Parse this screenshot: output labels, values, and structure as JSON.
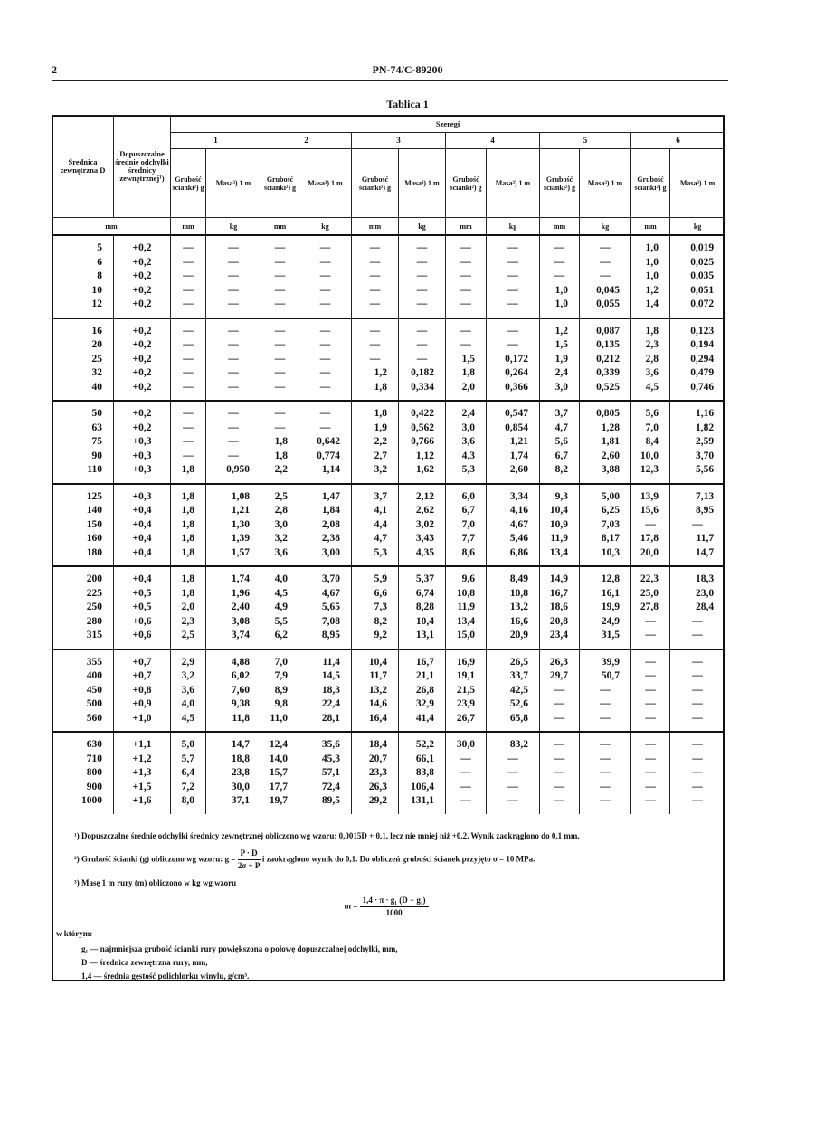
{
  "header": {
    "page_number": "2",
    "standard": "PN-74/C-89200"
  },
  "table": {
    "title": "Tablica 1",
    "col_diameter": "Średnica zewnętrzna D",
    "col_tolerance": "Dopuszczalne średnie odchyłki średnicy zewnętrznej¹)",
    "series_label": "Szeregi",
    "series": [
      "1",
      "2",
      "3",
      "4",
      "5",
      "6"
    ],
    "thickness_label": "Grubość ścianki²) g",
    "mass_label": "Masa³) 1 m",
    "unit_first": "mm",
    "unit_mm": "mm",
    "unit_kg": "kg",
    "groups": [
      [
        [
          "5",
          "+0,2",
          "—",
          "—",
          "—",
          "—",
          "—",
          "—",
          "—",
          "—",
          "—",
          "—",
          "1,0",
          "0,019"
        ],
        [
          "6",
          "+0,2",
          "—",
          "—",
          "—",
          "—",
          "—",
          "—",
          "—",
          "—",
          "—",
          "—",
          "1,0",
          "0,025"
        ],
        [
          "8",
          "+0,2",
          "—",
          "—",
          "—",
          "—",
          "—",
          "—",
          "—",
          "—",
          "—",
          "—",
          "1,0",
          "0,035"
        ],
        [
          "10",
          "+0,2",
          "—",
          "—",
          "—",
          "—",
          "—",
          "—",
          "—",
          "—",
          "1,0",
          "0,045",
          "1,2",
          "0,051"
        ],
        [
          "12",
          "+0,2",
          "—",
          "—",
          "—",
          "—",
          "—",
          "—",
          "—",
          "—",
          "1,0",
          "0,055",
          "1,4",
          "0,072"
        ]
      ],
      [
        [
          "16",
          "+0,2",
          "—",
          "—",
          "—",
          "—",
          "—",
          "—",
          "—",
          "—",
          "1,2",
          "0,087",
          "1,8",
          "0,123"
        ],
        [
          "20",
          "+0,2",
          "—",
          "—",
          "—",
          "—",
          "—",
          "—",
          "—",
          "—",
          "1,5",
          "0,135",
          "2,3",
          "0,194"
        ],
        [
          "25",
          "+0,2",
          "—",
          "—",
          "—",
          "—",
          "—",
          "—",
          "1,5",
          "0,172",
          "1,9",
          "0,212",
          "2,8",
          "0,294"
        ],
        [
          "32",
          "+0,2",
          "—",
          "—",
          "—",
          "—",
          "1,2",
          "0,182",
          "1,8",
          "0,264",
          "2,4",
          "0,339",
          "3,6",
          "0,479"
        ],
        [
          "40",
          "+0,2",
          "—",
          "—",
          "—",
          "—",
          "1,8",
          "0,334",
          "2,0",
          "0,366",
          "3,0",
          "0,525",
          "4,5",
          "0,746"
        ]
      ],
      [
        [
          "50",
          "+0,2",
          "—",
          "—",
          "—",
          "—",
          "1,8",
          "0,422",
          "2,4",
          "0,547",
          "3,7",
          "0,805",
          "5,6",
          "1,16"
        ],
        [
          "63",
          "+0,2",
          "—",
          "—",
          "—",
          "—",
          "1,9",
          "0,562",
          "3,0",
          "0,854",
          "4,7",
          "1,28",
          "7,0",
          "1,82"
        ],
        [
          "75",
          "+0,3",
          "—",
          "—",
          "1,8",
          "0,642",
          "2,2",
          "0,766",
          "3,6",
          "1,21",
          "5,6",
          "1,81",
          "8,4",
          "2,59"
        ],
        [
          "90",
          "+0,3",
          "—",
          "—",
          "1,8",
          "0,774",
          "2,7",
          "1,12",
          "4,3",
          "1,74",
          "6,7",
          "2,60",
          "10,0",
          "3,70"
        ],
        [
          "110",
          "+0,3",
          "1,8",
          "0,950",
          "2,2",
          "1,14",
          "3,2",
          "1,62",
          "5,3",
          "2,60",
          "8,2",
          "3,88",
          "12,3",
          "5,56"
        ]
      ],
      [
        [
          "125",
          "+0,3",
          "1,8",
          "1,08",
          "2,5",
          "1,47",
          "3,7",
          "2,12",
          "6,0",
          "3,34",
          "9,3",
          "5,00",
          "13,9",
          "7,13"
        ],
        [
          "140",
          "+0,4",
          "1,8",
          "1,21",
          "2,8",
          "1,84",
          "4,1",
          "2,62",
          "6,7",
          "4,16",
          "10,4",
          "6,25",
          "15,6",
          "8,95"
        ],
        [
          "150",
          "+0,4",
          "1,8",
          "1,30",
          "3,0",
          "2,08",
          "4,4",
          "3,02",
          "7,0",
          "4,67",
          "10,9",
          "7,03",
          "—",
          "—"
        ],
        [
          "160",
          "+0,4",
          "1,8",
          "1,39",
          "3,2",
          "2,38",
          "4,7",
          "3,43",
          "7,7",
          "5,46",
          "11,9",
          "8,17",
          "17,8",
          "11,7"
        ],
        [
          "180",
          "+0,4",
          "1,8",
          "1,57",
          "3,6",
          "3,00",
          "5,3",
          "4,35",
          "8,6",
          "6,86",
          "13,4",
          "10,3",
          "20,0",
          "14,7"
        ]
      ],
      [
        [
          "200",
          "+0,4",
          "1,8",
          "1,74",
          "4,0",
          "3,70",
          "5,9",
          "5,37",
          "9,6",
          "8,49",
          "14,9",
          "12,8",
          "22,3",
          "18,3"
        ],
        [
          "225",
          "+0,5",
          "1,8",
          "1,96",
          "4,5",
          "4,67",
          "6,6",
          "6,74",
          "10,8",
          "10,8",
          "16,7",
          "16,1",
          "25,0",
          "23,0"
        ],
        [
          "250",
          "+0,5",
          "2,0",
          "2,40",
          "4,9",
          "5,65",
          "7,3",
          "8,28",
          "11,9",
          "13,2",
          "18,6",
          "19,9",
          "27,8",
          "28,4"
        ],
        [
          "280",
          "+0,6",
          "2,3",
          "3,08",
          "5,5",
          "7,08",
          "8,2",
          "10,4",
          "13,4",
          "16,6",
          "20,8",
          "24,9",
          "—",
          "—"
        ],
        [
          "315",
          "+0,6",
          "2,5",
          "3,74",
          "6,2",
          "8,95",
          "9,2",
          "13,1",
          "15,0",
          "20,9",
          "23,4",
          "31,5",
          "—",
          "—"
        ]
      ],
      [
        [
          "355",
          "+0,7",
          "2,9",
          "4,88",
          "7,0",
          "11,4",
          "10,4",
          "16,7",
          "16,9",
          "26,5",
          "26,3",
          "39,9",
          "—",
          "—"
        ],
        [
          "400",
          "+0,7",
          "3,2",
          "6,02",
          "7,9",
          "14,5",
          "11,7",
          "21,1",
          "19,1",
          "33,7",
          "29,7",
          "50,7",
          "—",
          "—"
        ],
        [
          "450",
          "+0,8",
          "3,6",
          "7,60",
          "8,9",
          "18,3",
          "13,2",
          "26,8",
          "21,5",
          "42,5",
          "—",
          "—",
          "—",
          "—"
        ],
        [
          "500",
          "+0,9",
          "4,0",
          "9,38",
          "9,8",
          "22,4",
          "14,6",
          "32,9",
          "23,9",
          "52,6",
          "—",
          "—",
          "—",
          "—"
        ],
        [
          "560",
          "+1,0",
          "4,5",
          "11,8",
          "11,0",
          "28,1",
          "16,4",
          "41,4",
          "26,7",
          "65,8",
          "—",
          "—",
          "—",
          "—"
        ]
      ],
      [
        [
          "630",
          "+1,1",
          "5,0",
          "14,7",
          "12,4",
          "35,6",
          "18,4",
          "52,2",
          "30,0",
          "83,2",
          "—",
          "—",
          "—",
          "—"
        ],
        [
          "710",
          "+1,2",
          "5,7",
          "18,8",
          "14,0",
          "45,3",
          "20,7",
          "66,1",
          "—",
          "—",
          "—",
          "—",
          "—",
          "—"
        ],
        [
          "800",
          "+1,3",
          "6,4",
          "23,8",
          "15,7",
          "57,1",
          "23,3",
          "83,8",
          "—",
          "—",
          "—",
          "—",
          "—",
          "—"
        ],
        [
          "900",
          "+1,5",
          "7,2",
          "30,0",
          "17,7",
          "72,4",
          "26,3",
          "106,4",
          "—",
          "—",
          "—",
          "—",
          "—",
          "—"
        ],
        [
          "1000",
          "+1,6",
          "8,0",
          "37,1",
          "19,7",
          "89,5",
          "29,2",
          "131,1",
          "—",
          "—",
          "—",
          "—",
          "—",
          "—"
        ]
      ]
    ]
  },
  "footnotes": {
    "note1": "¹) Dopuszczalne średnie odchyłki średnicy zewnętrznej obliczono wg wzoru: 0,0015D + 0,1, lecz nie mniej niż +0,2. Wynik zaokrąglono do 0,1 mm.",
    "note2_a": "²) Grubość ścianki (g) obliczono wg wzoru: g =",
    "note2_num": "P · D",
    "note2_den": "2σ + P",
    "note2_b": "i zaokrąglono wynik do 0,1. Do obliczeń grubości ścianek przyjęto σ = 10 MPa.",
    "note3": "³) Masę 1 m rury (m) obliczono w kg wg wzoru",
    "formula_lhs": "m =",
    "formula_num": "1,4 · π · g₁ (D − g₁)",
    "formula_den": "1000",
    "where": "w którym:",
    "legend": [
      "g₁ — najmniejsza grubość ścianki rury powiększona o połowę dopuszczalnej odchyłki, mm,",
      "D — średnica zewnętrzna rury, mm,",
      "1,4 — średnia gęstość polichlorku winylu, g/cm³."
    ]
  }
}
